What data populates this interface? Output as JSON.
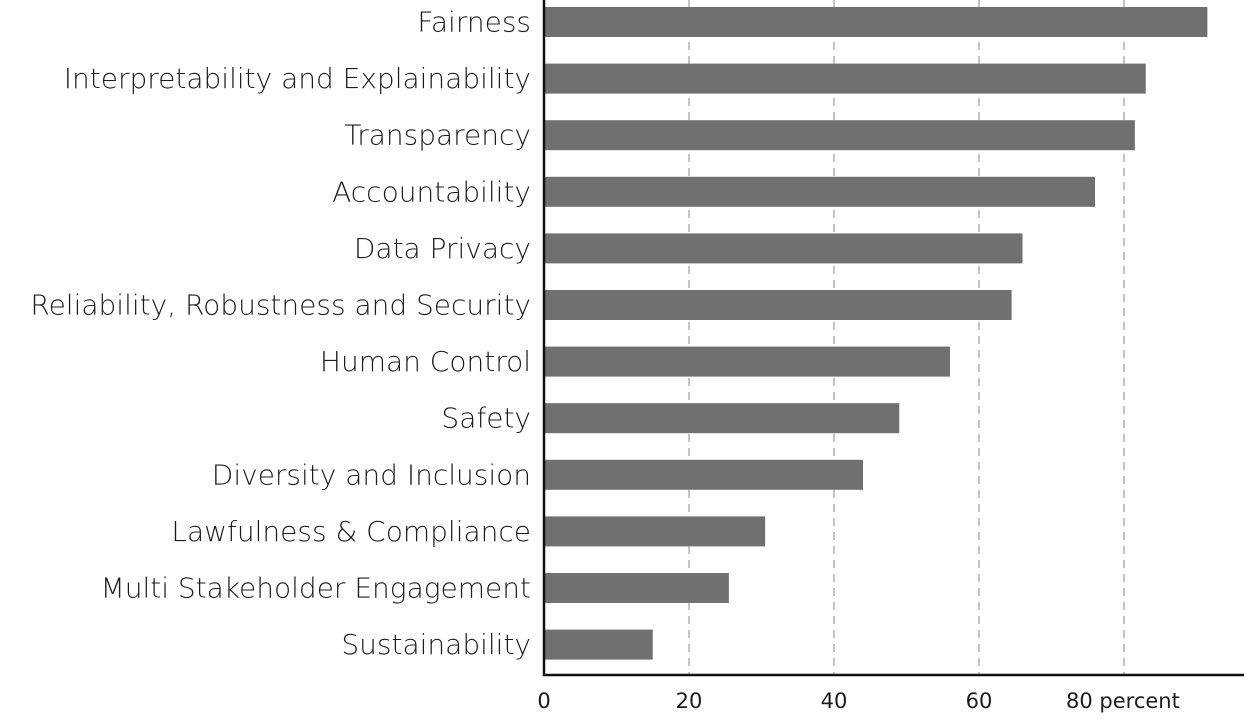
{
  "chart_data": {
    "type": "bar",
    "orientation": "horizontal",
    "categories": [
      "Fairness",
      "Interpretability and Explainability",
      "Transparency",
      "Accountability",
      "Data Privacy",
      "Reliability, Robustness and Security",
      "Human Control",
      "Safety",
      "Diversity and Inclusion",
      "Lawfulness & Compliance",
      "Multi Stakeholder Engagement",
      "Sustainability"
    ],
    "values": [
      91.5,
      83,
      81.5,
      76,
      66,
      64.5,
      56,
      49,
      44,
      30.5,
      25.5,
      15
    ],
    "xlim": [
      0,
      96
    ],
    "x_ticks": [
      {
        "value": 0,
        "label": "0"
      },
      {
        "value": 20,
        "label": "20"
      },
      {
        "value": 40,
        "label": "40"
      },
      {
        "value": 60,
        "label": "60"
      },
      {
        "value": 80,
        "label": "80 percent"
      }
    ],
    "grid": true,
    "title": "",
    "xlabel": "",
    "ylabel": "",
    "bar_color": "#707070"
  }
}
